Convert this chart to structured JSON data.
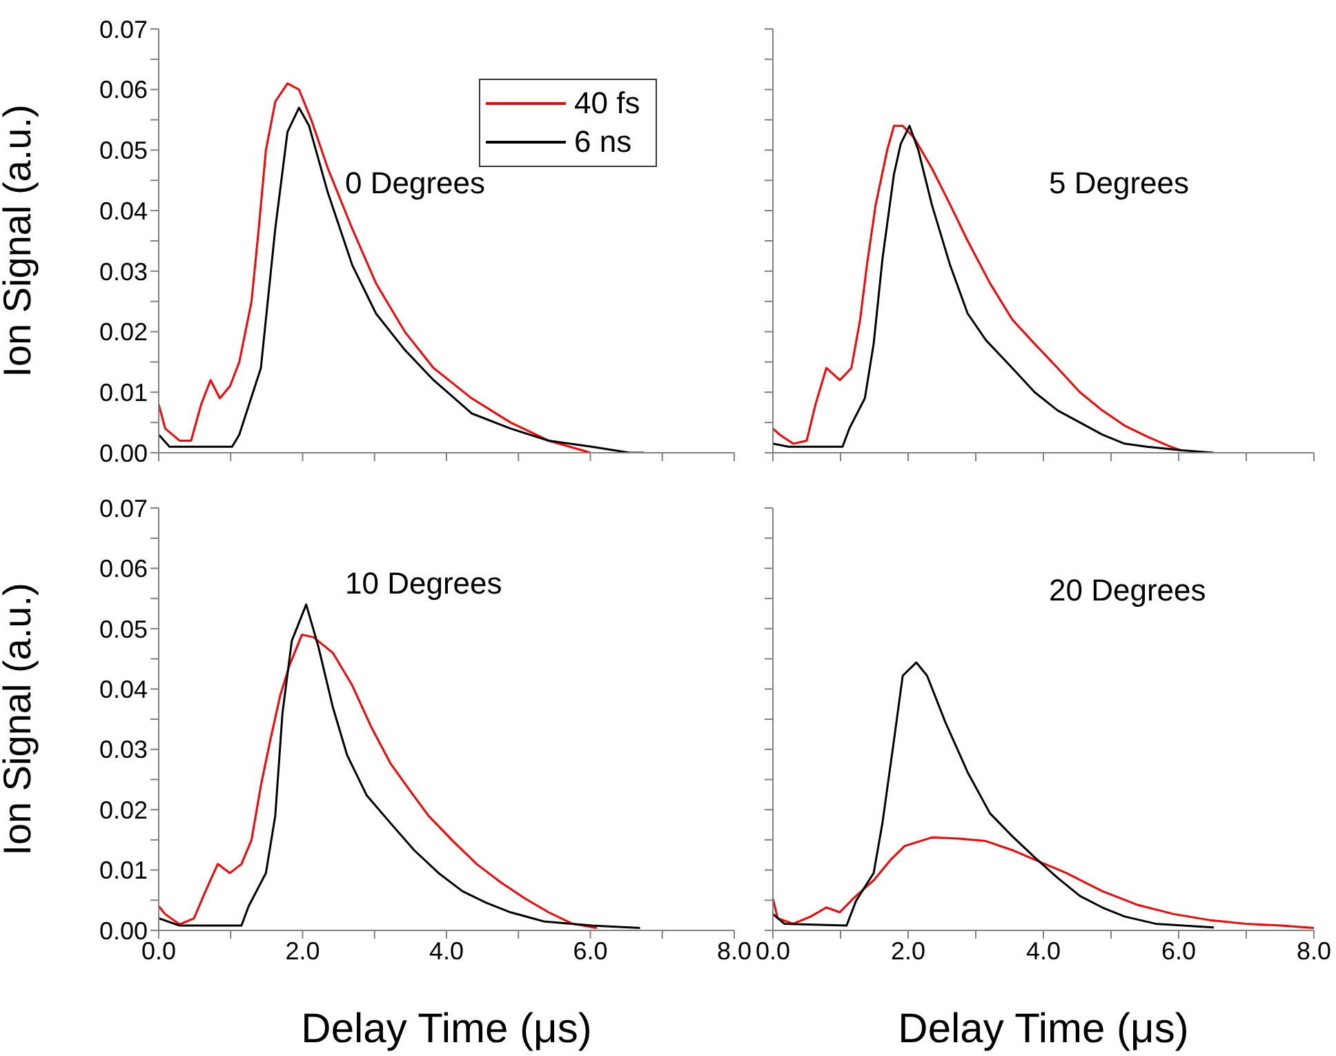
{
  "chart_data": [
    {
      "type": "line",
      "ylabel": "Ion Signal (a.u.)",
      "annotations": [
        "0 Degrees"
      ],
      "legend": "top right",
      "tick_labels": "y",
      "xlim": [
        0,
        8
      ],
      "xticks": [
        {
          "value": 0,
          "label": null
        },
        {
          "value": 1,
          "label": null
        },
        {
          "value": 2,
          "label": null
        },
        {
          "value": 3,
          "label": null
        },
        {
          "value": 4,
          "label": null
        },
        {
          "value": 5,
          "label": null
        },
        {
          "value": 6,
          "label": null
        },
        {
          "value": 7,
          "label": null
        },
        {
          "value": 8,
          "label": null
        }
      ],
      "ylim": [
        0,
        0.07
      ],
      "yticks": [
        {
          "value": 0,
          "label": "0.00"
        },
        {
          "value": 0.005,
          "label": null
        },
        0.01,
        {
          "value": 0.015,
          "label": null
        },
        0.02,
        {
          "value": 0.025,
          "label": null
        },
        0.03,
        {
          "value": 0.035,
          "label": null
        },
        0.04,
        {
          "value": 0.045,
          "label": null
        },
        0.05,
        {
          "value": 0.055,
          "label": null
        },
        0.06,
        {
          "value": 0.065,
          "label": null
        },
        0.07
      ],
      "series": [
        {
          "name": "40 fs",
          "color": "#ff0000",
          "x": [
            0,
            0.09,
            0.29,
            0.45,
            0.59,
            0.72,
            0.85,
            0.99,
            1.12,
            1.29,
            1.39,
            1.49,
            1.62,
            1.79,
            1.95,
            2.12,
            2.35,
            2.69,
            3.02,
            3.42,
            3.82,
            4.35,
            4.89,
            5.42,
            5.89,
            6.0
          ],
          "values": [
            0.008,
            0.004,
            0.002,
            0.002,
            0.008,
            0.012,
            0.009,
            0.011,
            0.015,
            0.025,
            0.037,
            0.05,
            0.058,
            0.061,
            0.06,
            0.055,
            0.047,
            0.037,
            0.028,
            0.02,
            0.014,
            0.009,
            0.005,
            0.002,
            0.0004,
            0
          ]
        },
        {
          "name": "6 ns",
          "color": "#000000",
          "x": [
            0,
            0.15,
            0.35,
            1.02,
            1.12,
            1.42,
            1.62,
            1.79,
            1.95,
            2.09,
            2.35,
            2.69,
            3.02,
            3.42,
            3.82,
            4.35,
            4.89,
            5.42,
            6.02,
            6.55,
            6.75
          ],
          "values": [
            0.003,
            0.001,
            0.001,
            0.001,
            0.003,
            0.014,
            0.037,
            0.053,
            0.057,
            0.054,
            0.043,
            0.031,
            0.023,
            0.017,
            0.012,
            0.0065,
            0.004,
            0.002,
            0.001,
            0,
            0
          ]
        }
      ]
    },
    {
      "type": "line",
      "annotations": [
        "5 Degrees"
      ],
      "tick_labels": false,
      "xlim": [
        0,
        8
      ],
      "xticks": [
        {
          "value": 0,
          "label": null
        },
        {
          "value": 1,
          "label": null
        },
        {
          "value": 2,
          "label": null
        },
        {
          "value": 3,
          "label": null
        },
        {
          "value": 4,
          "label": null
        },
        {
          "value": 5,
          "label": null
        },
        {
          "value": 6,
          "label": null
        },
        {
          "value": 7,
          "label": null
        },
        {
          "value": 8,
          "label": null
        }
      ],
      "ylim": [
        0,
        0.07
      ],
      "yticks": [
        {
          "value": 0,
          "label": null
        },
        {
          "value": 0.005,
          "label": null
        },
        {
          "value": 0.01,
          "label": null
        },
        {
          "value": 0.015,
          "label": null
        },
        {
          "value": 0.02,
          "label": null
        },
        {
          "value": 0.025,
          "label": null
        },
        {
          "value": 0.03,
          "label": null
        },
        {
          "value": 0.035,
          "label": null
        },
        {
          "value": 0.04,
          "label": null
        },
        {
          "value": 0.045,
          "label": null
        },
        {
          "value": 0.05,
          "label": null
        },
        {
          "value": 0.055,
          "label": null
        },
        {
          "value": 0.06,
          "label": null
        },
        {
          "value": 0.065,
          "label": null
        },
        {
          "value": 0.07,
          "label": null
        }
      ],
      "series": [
        {
          "color": "#ff0000",
          "x": [
            0,
            0.1,
            0.3,
            0.5,
            0.63,
            0.79,
            0.99,
            1.16,
            1.29,
            1.39,
            1.52,
            1.69,
            1.79,
            1.92,
            2.09,
            2.35,
            2.62,
            2.88,
            3.21,
            3.54,
            3.87,
            4.21,
            4.54,
            4.87,
            5.2,
            5.53,
            5.86,
            6.03
          ],
          "values": [
            0.004,
            0.003,
            0.0015,
            0.002,
            0.008,
            0.014,
            0.012,
            0.014,
            0.022,
            0.031,
            0.041,
            0.05,
            0.054,
            0.054,
            0.052,
            0.047,
            0.041,
            0.035,
            0.028,
            0.022,
            0.018,
            0.014,
            0.01,
            0.007,
            0.0045,
            0.0027,
            0.0011,
            0.0004
          ]
        },
        {
          "color": "#000000",
          "x": [
            0,
            0.23,
            1.03,
            1.13,
            1.36,
            1.49,
            1.62,
            1.79,
            1.89,
            2.02,
            2.15,
            2.35,
            2.62,
            2.88,
            3.15,
            3.54,
            3.87,
            4.21,
            4.54,
            4.87,
            5.2,
            5.53,
            6.06,
            6.52
          ],
          "values": [
            0.0015,
            0.001,
            0.001,
            0.004,
            0.009,
            0.018,
            0.032,
            0.046,
            0.051,
            0.054,
            0.05,
            0.041,
            0.031,
            0.023,
            0.0186,
            0.014,
            0.01,
            0.007,
            0.005,
            0.003,
            0.0015,
            0.001,
            0.0004,
            0
          ]
        }
      ]
    },
    {
      "type": "line",
      "xlabel": "Delay Time (μs)",
      "ylabel": "Ion Signal (a.u.)",
      "annotations": [
        "10 Degrees"
      ],
      "xlim": [
        0,
        8
      ],
      "xticks": [
        {
          "value": 0,
          "label": "0.0"
        },
        {
          "value": 1,
          "label": null
        },
        {
          "value": 2,
          "label": "2.0"
        },
        {
          "value": 3,
          "label": null
        },
        {
          "value": 4,
          "label": "4.0"
        },
        {
          "value": 5,
          "label": null
        },
        {
          "value": 6,
          "label": "6.0"
        },
        {
          "value": 7,
          "label": null
        },
        {
          "value": 8,
          "label": "8.0"
        }
      ],
      "ylim": [
        0,
        0.07
      ],
      "yticks": [
        {
          "value": 0,
          "label": "0.00"
        },
        {
          "value": 0.005,
          "label": null
        },
        0.01,
        {
          "value": 0.015,
          "label": null
        },
        0.02,
        {
          "value": 0.025,
          "label": null
        },
        0.03,
        {
          "value": 0.035,
          "label": null
        },
        0.04,
        {
          "value": 0.045,
          "label": null
        },
        0.05,
        {
          "value": 0.055,
          "label": null
        },
        0.06,
        {
          "value": 0.065,
          "label": null
        },
        0.07
      ],
      "series": [
        {
          "color": "#ff0000",
          "x": [
            0,
            0.09,
            0.29,
            0.49,
            0.65,
            0.82,
            0.99,
            1.15,
            1.29,
            1.42,
            1.55,
            1.69,
            1.82,
            1.99,
            2.15,
            2.42,
            2.69,
            2.95,
            3.22,
            3.49,
            3.75,
            4.09,
            4.42,
            4.75,
            5.09,
            5.42,
            5.75,
            6.09
          ],
          "values": [
            0.004,
            0.0027,
            0.001,
            0.002,
            0.0065,
            0.011,
            0.0095,
            0.011,
            0.015,
            0.024,
            0.0315,
            0.039,
            0.044,
            0.049,
            0.0486,
            0.046,
            0.0406,
            0.0338,
            0.0277,
            0.0232,
            0.019,
            0.0148,
            0.011,
            0.008,
            0.0053,
            0.003,
            0.0011,
            0.0004
          ]
        },
        {
          "color": "#000000",
          "x": [
            0,
            0.29,
            1.15,
            1.25,
            1.49,
            1.62,
            1.72,
            1.85,
            2.05,
            2.22,
            2.42,
            2.62,
            2.89,
            3.22,
            3.55,
            3.89,
            4.22,
            4.55,
            4.89,
            5.35,
            6.02,
            6.69
          ],
          "values": [
            0.002,
            0.0008,
            0.0008,
            0.004,
            0.0095,
            0.019,
            0.036,
            0.048,
            0.054,
            0.047,
            0.037,
            0.029,
            0.0224,
            0.0178,
            0.0133,
            0.0095,
            0.0065,
            0.0046,
            0.003,
            0.0015,
            0.0008,
            0.0004
          ]
        }
      ]
    },
    {
      "type": "line",
      "xlabel": "Delay Time (μs)",
      "annotations": [
        "20 Degrees"
      ],
      "tick_labels": "x",
      "xlim": [
        0,
        8
      ],
      "xticks": [
        {
          "value": 0,
          "label": "0.0"
        },
        {
          "value": 1,
          "label": null
        },
        {
          "value": 2,
          "label": "2.0"
        },
        {
          "value": 3,
          "label": null
        },
        {
          "value": 4,
          "label": "4.0"
        },
        {
          "value": 5,
          "label": null
        },
        {
          "value": 6,
          "label": "6.0"
        },
        {
          "value": 7,
          "label": null
        },
        {
          "value": 8,
          "label": "8.0"
        }
      ],
      "ylim": [
        0,
        0.07
      ],
      "yticks": [
        {
          "value": 0,
          "label": null
        },
        {
          "value": 0.005,
          "label": null
        },
        {
          "value": 0.01,
          "label": null
        },
        {
          "value": 0.015,
          "label": null
        },
        {
          "value": 0.02,
          "label": null
        },
        {
          "value": 0.025,
          "label": null
        },
        {
          "value": 0.03,
          "label": null
        },
        {
          "value": 0.035,
          "label": null
        },
        {
          "value": 0.04,
          "label": null
        },
        {
          "value": 0.045,
          "label": null
        },
        {
          "value": 0.05,
          "label": null
        },
        {
          "value": 0.055,
          "label": null
        },
        {
          "value": 0.06,
          "label": null
        },
        {
          "value": 0.065,
          "label": null
        },
        {
          "value": 0.07,
          "label": null
        }
      ],
      "series": [
        {
          "color": "#ff0000",
          "x": [
            0,
            0.07,
            0.3,
            0.56,
            0.79,
            0.99,
            1.19,
            1.49,
            1.75,
            1.95,
            2.35,
            2.75,
            3.15,
            3.54,
            3.94,
            4.34,
            4.87,
            5.4,
            5.93,
            6.46,
            6.99,
            7.52,
            8
          ],
          "values": [
            0.0053,
            0.002,
            0.0011,
            0.0023,
            0.0038,
            0.003,
            0.0053,
            0.0083,
            0.0118,
            0.014,
            0.0154,
            0.0152,
            0.0148,
            0.0133,
            0.0114,
            0.0095,
            0.0065,
            0.0042,
            0.0027,
            0.0017,
            0.0011,
            0.0008,
            0.0004
          ]
        },
        {
          "color": "#000000",
          "x": [
            0,
            0.17,
            1.09,
            1.23,
            1.49,
            1.62,
            1.79,
            1.92,
            2.12,
            2.28,
            2.55,
            2.88,
            3.21,
            3.54,
            3.87,
            4.21,
            4.54,
            4.87,
            5.2,
            5.66,
            6.52
          ],
          "values": [
            0.0027,
            0.0011,
            0.0008,
            0.0049,
            0.0095,
            0.0178,
            0.0315,
            0.0422,
            0.0444,
            0.0422,
            0.0345,
            0.0262,
            0.0194,
            0.0156,
            0.0121,
            0.0087,
            0.0057,
            0.0038,
            0.0023,
            0.0011,
            0.0005
          ]
        }
      ]
    }
  ]
}
